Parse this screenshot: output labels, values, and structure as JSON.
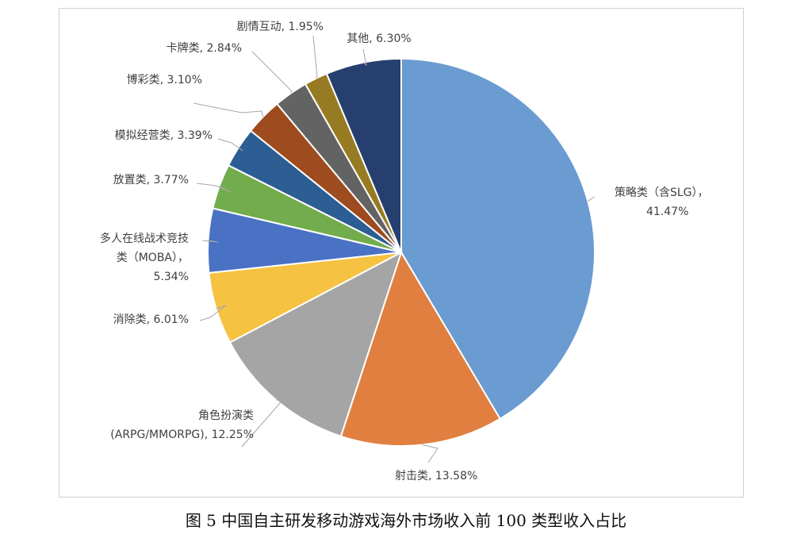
{
  "caption": "图 5  中国自主研发移动游戏海外市场收入前 100 类型收入占比",
  "chart_data": {
    "type": "pie",
    "slices": [
      {
        "label": [
          "策略类（含SLG），",
          "41.47%"
        ],
        "value": 41.47,
        "color": "#6a9bd1"
      },
      {
        "label": [
          "射击类, 13.58%"
        ],
        "value": 13.58,
        "color": "#e07f3f"
      },
      {
        "label": [
          "角色扮演类",
          "(ARPG/MMORPG), 12.25%"
        ],
        "value": 12.25,
        "color": "#a5a5a5"
      },
      {
        "label": [
          "消除类, 6.01%"
        ],
        "value": 6.01,
        "color": "#f5c242"
      },
      {
        "label": [
          "多人在线战术竞技",
          "类（MOBA），",
          "5.34%"
        ],
        "value": 5.34,
        "color": "#4a72c4"
      },
      {
        "label": [
          "放置类, 3.77%"
        ],
        "value": 3.77,
        "color": "#72ac4d"
      },
      {
        "label": [
          "模拟经营类, 3.39%"
        ],
        "value": 3.39,
        "color": "#2c5d93"
      },
      {
        "label": [
          "博彩类, 3.10%"
        ],
        "value": 3.1,
        "color": "#9d4b1f"
      },
      {
        "label": [
          "卡牌类, 2.84%"
        ],
        "value": 2.84,
        "color": "#636363"
      },
      {
        "label": [
          "剧情互动, 1.95%"
        ],
        "value": 1.95,
        "color": "#977b22"
      },
      {
        "label": [
          "其他, 6.30%"
        ],
        "value": 6.3,
        "color": "#263f6e"
      }
    ]
  }
}
